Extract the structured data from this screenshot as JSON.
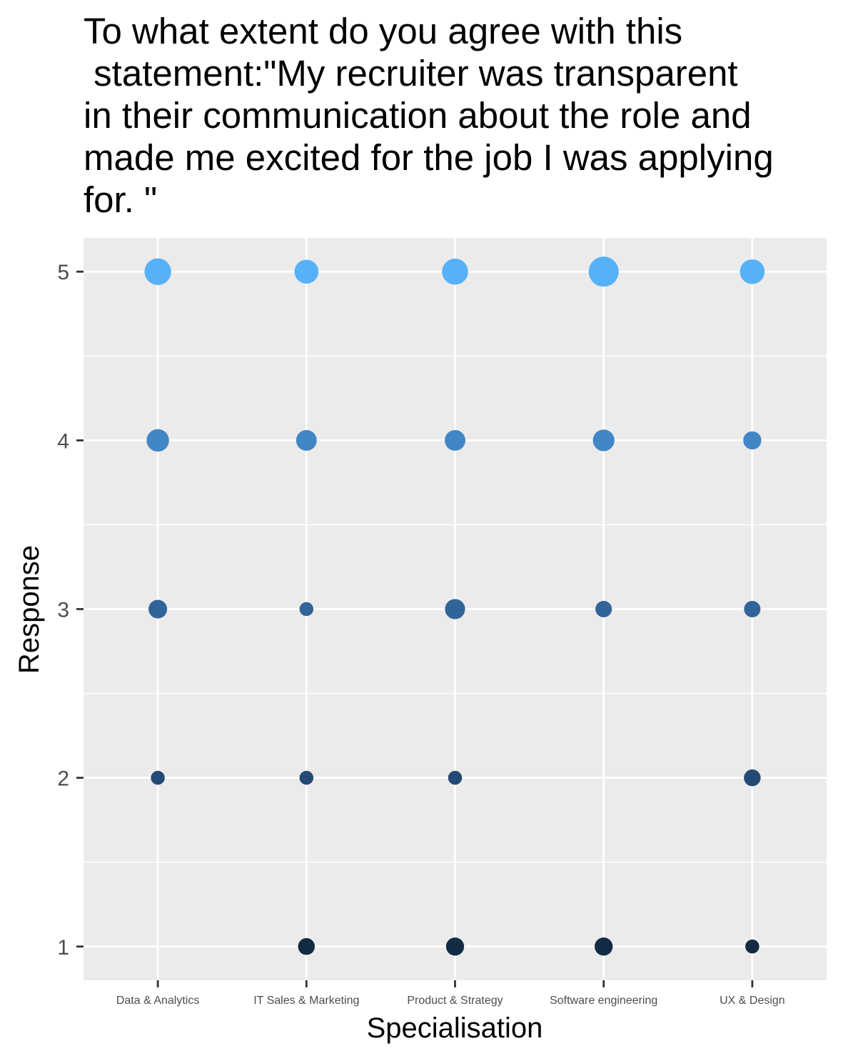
{
  "chart_data": {
    "type": "scatter",
    "title_lines": [
      "To what extent do you agree with this",
      " statement:\"My recruiter was transparent",
      "in their communication about the role and",
      "made me excited for the job I was applying",
      "for. \""
    ],
    "xlabel": "Specialisation",
    "ylabel": "Response",
    "categories": [
      "Data & Analytics",
      "IT Sales & Marketing",
      "Product & Strategy",
      "Software engineering",
      "UX & Design"
    ],
    "y_ticks": [
      "1",
      "2",
      "3",
      "4",
      "5"
    ],
    "ylim": [
      0.8,
      5.2
    ],
    "grid": true,
    "legend": "none",
    "colors": {
      "panel_bg": "#ebebeb",
      "grid": "#ffffff",
      "response_5": "#56b1f7",
      "response_4": "#4186c5",
      "response_3": "#316499",
      "response_2": "#234a74",
      "response_1": "#132b43"
    },
    "points": [
      {
        "x": "Data & Analytics",
        "y": 5,
        "size": 7
      },
      {
        "x": "Data & Analytics",
        "y": 4,
        "size": 4
      },
      {
        "x": "Data & Analytics",
        "y": 3,
        "size": 2
      },
      {
        "x": "Data & Analytics",
        "y": 2,
        "size": 0.5
      },
      {
        "x": "IT Sales & Marketing",
        "y": 5,
        "size": 5
      },
      {
        "x": "IT Sales & Marketing",
        "y": 4,
        "size": 3
      },
      {
        "x": "IT Sales & Marketing",
        "y": 3,
        "size": 0.5
      },
      {
        "x": "IT Sales & Marketing",
        "y": 2,
        "size": 0.5
      },
      {
        "x": "IT Sales & Marketing",
        "y": 1,
        "size": 1.3
      },
      {
        "x": "Product & Strategy",
        "y": 5,
        "size": 6.5
      },
      {
        "x": "Product & Strategy",
        "y": 4,
        "size": 3
      },
      {
        "x": "Product & Strategy",
        "y": 3,
        "size": 2.7
      },
      {
        "x": "Product & Strategy",
        "y": 2,
        "size": 0.5
      },
      {
        "x": "Product & Strategy",
        "y": 1,
        "size": 1.8
      },
      {
        "x": "Software engineering",
        "y": 5,
        "size": 10
      },
      {
        "x": "Software engineering",
        "y": 4,
        "size": 3.5
      },
      {
        "x": "Software engineering",
        "y": 3,
        "size": 1.2
      },
      {
        "x": "Software engineering",
        "y": 1,
        "size": 1.8
      },
      {
        "x": "UX & Design",
        "y": 5,
        "size": 5.5
      },
      {
        "x": "UX & Design",
        "y": 4,
        "size": 1.8
      },
      {
        "x": "UX & Design",
        "y": 3,
        "size": 1.2
      },
      {
        "x": "UX & Design",
        "y": 2,
        "size": 1.3
      },
      {
        "x": "UX & Design",
        "y": 1,
        "size": 0.5
      }
    ]
  }
}
